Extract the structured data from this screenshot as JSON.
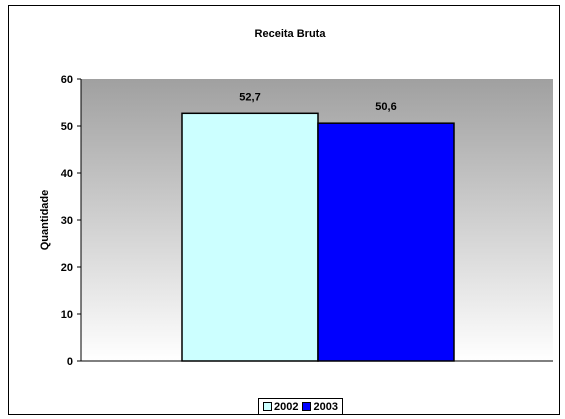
{
  "chart_data": {
    "type": "bar",
    "title": "Receita Bruta",
    "xlabel": "",
    "ylabel": "Quantidade",
    "ylim": [
      0,
      60
    ],
    "yticks": [
      0,
      10,
      20,
      30,
      40,
      50,
      60
    ],
    "grid": false,
    "legend_position": "bottom",
    "series": [
      {
        "name": "2002",
        "values": [
          52.7
        ],
        "label": "52,7",
        "color": "#ccffff"
      },
      {
        "name": "2003",
        "values": [
          50.6
        ],
        "label": "50,6",
        "color": "#0000ff"
      }
    ],
    "plot_background": "gradient-grey"
  }
}
